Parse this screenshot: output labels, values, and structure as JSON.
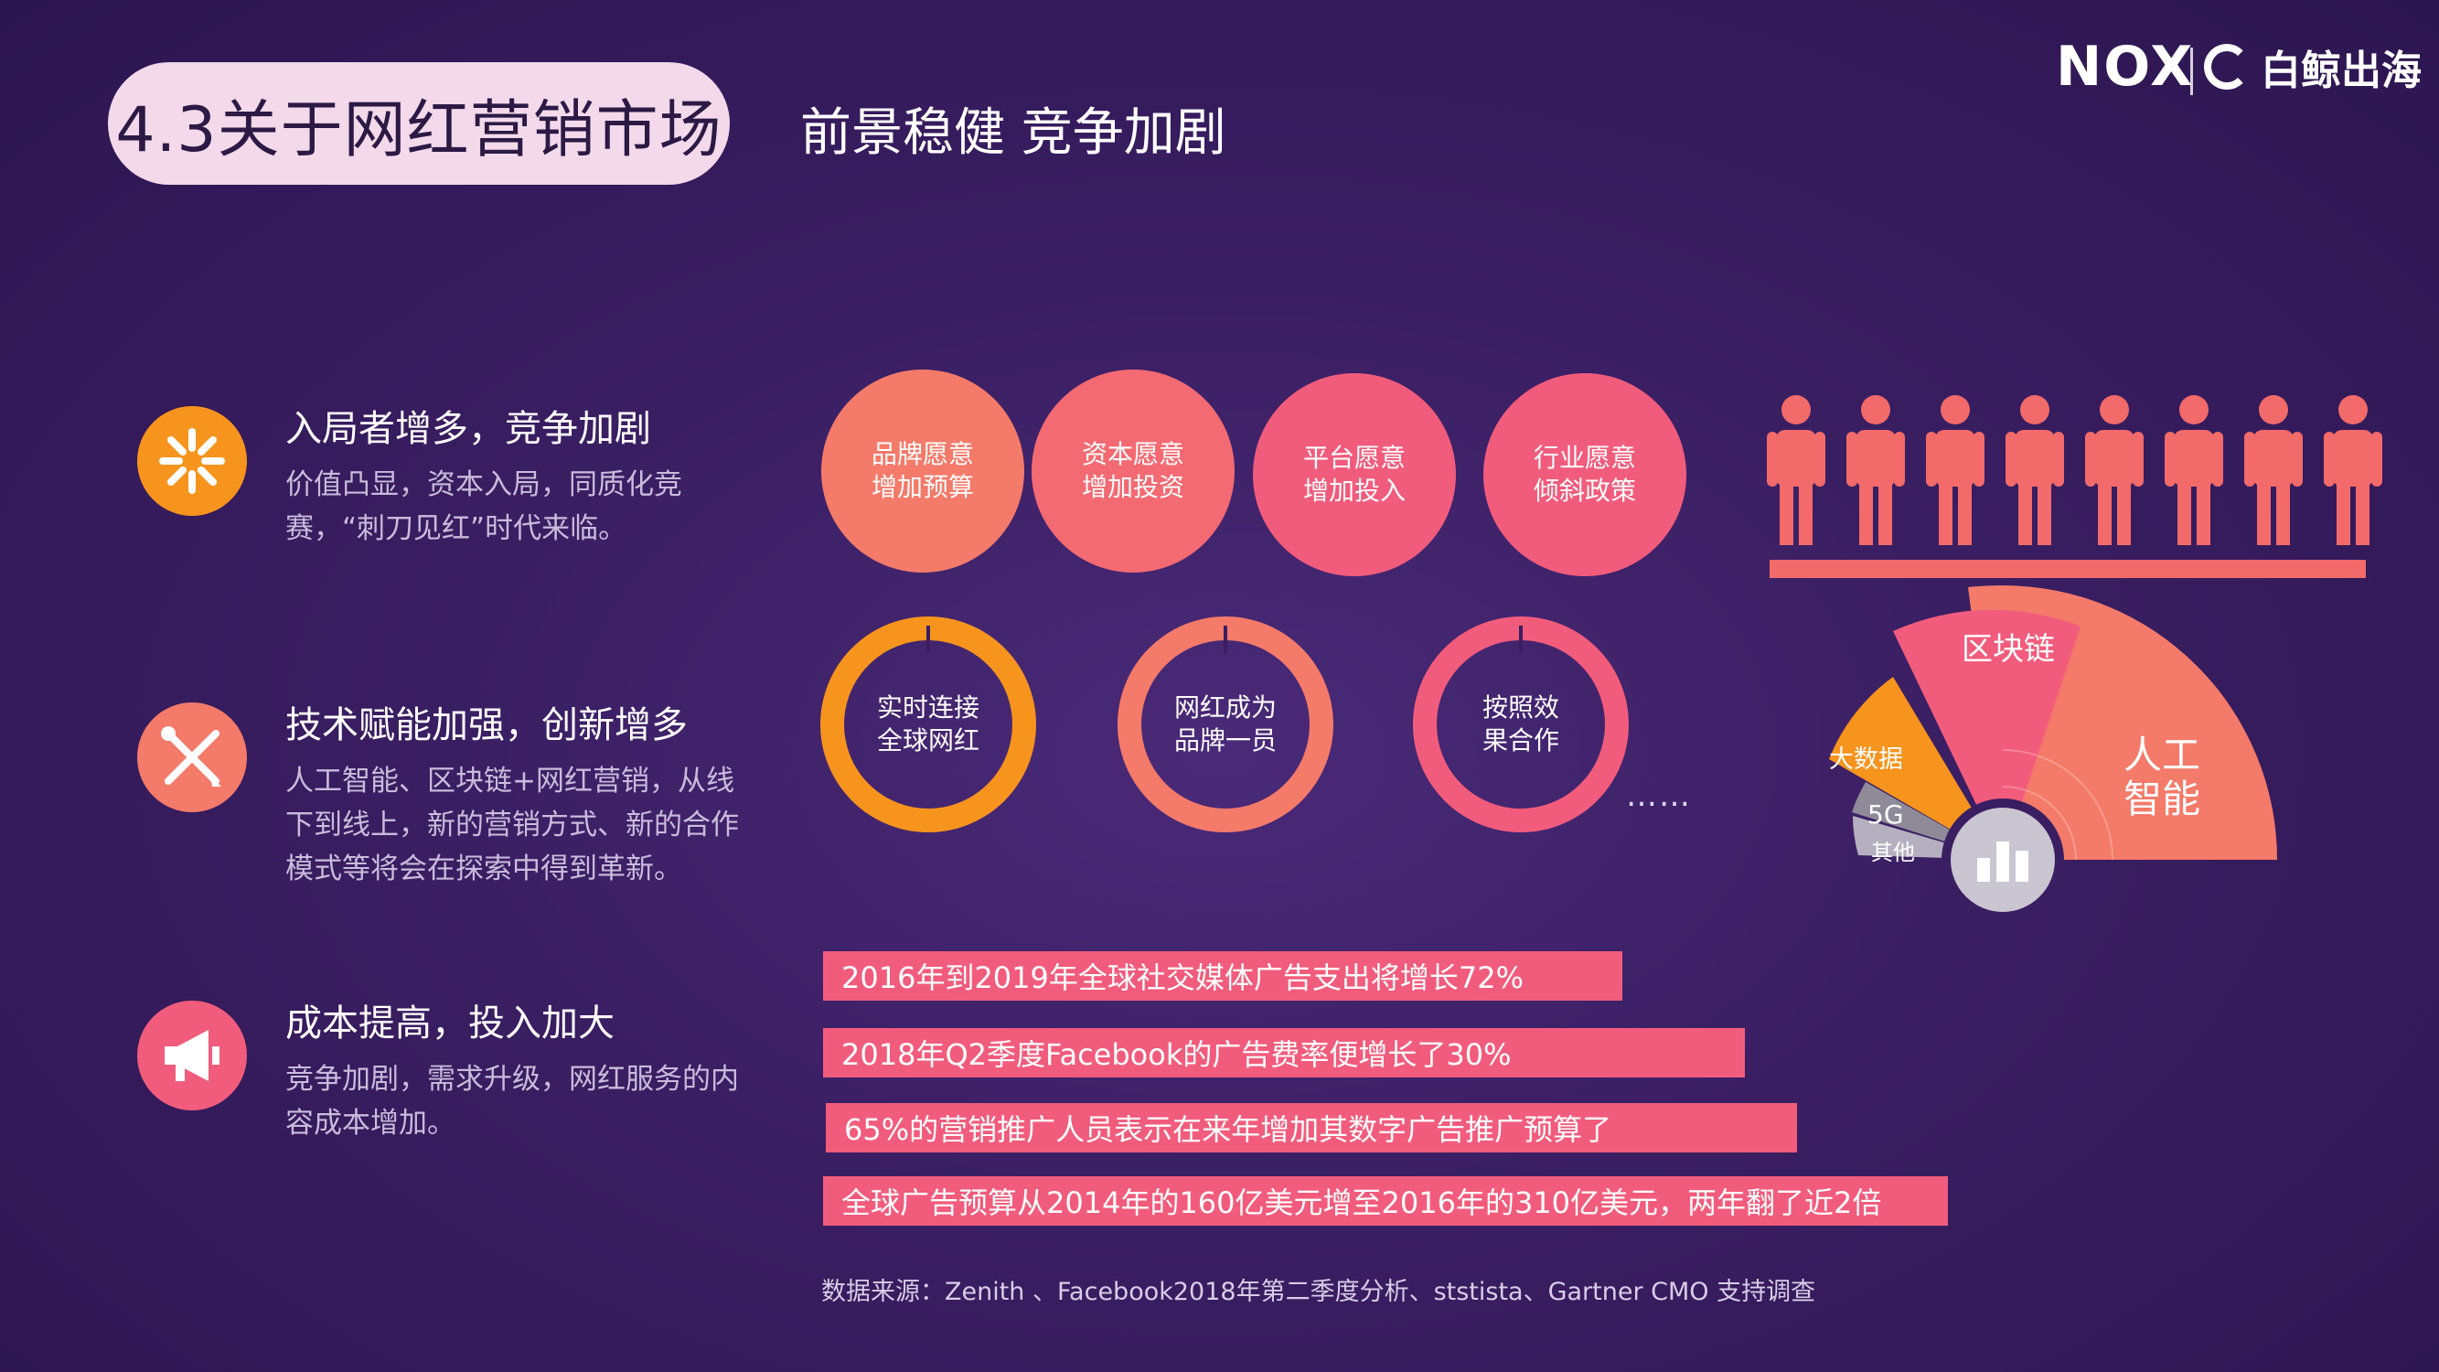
{
  "header": {
    "title": "4.3关于网红营销市场",
    "subtitle": "前景稳健 竞争加剧",
    "logo_nox": "NOX",
    "logo_brand": "白鲸出海"
  },
  "features": [
    {
      "title": "入局者增多，竞争加剧",
      "desc": "价值凸显，资本入局，同质化竞赛，“刺刀见红”时代来临。",
      "icon": "sunburst-icon",
      "color": "#f7941d"
    },
    {
      "title": "技术赋能加强，创新增多",
      "desc": "人工智能、区块链+网红营销，从线下到线上，新的营销方式、新的合作模式等将会在探索中得到革新。",
      "icon": "tools-icon",
      "color": "#f47a6a"
    },
    {
      "title": "成本提高，投入加大",
      "desc": "竞争加剧，需求升级，网红服务的内容成本增加。",
      "icon": "megaphone-icon",
      "color": "#f25c7c"
    }
  ],
  "bubbles": [
    {
      "label_1": "品牌愿意",
      "label_2": "增加预算",
      "color": "#f47a6a"
    },
    {
      "label_1": "资本愿意",
      "label_2": "增加投资",
      "color": "#f46a72"
    },
    {
      "label_1": "平台愿意",
      "label_2": "增加投入",
      "color": "#f25c7c"
    },
    {
      "label_1": "行业愿意",
      "label_2": "倾斜政策",
      "color": "#f25c7c"
    }
  ],
  "rings": [
    {
      "label_1": "实时连接",
      "label_2": "全球网红",
      "color": "#f7941d"
    },
    {
      "label_1": "网红成为",
      "label_2": "品牌一员",
      "color": "#f47a6a"
    },
    {
      "label_1": "按照效",
      "label_2": "果合作",
      "color": "#f25c7c"
    }
  ],
  "ellipsis": "……",
  "fan": {
    "segments": [
      {
        "label": "其他",
        "color": "#b5b0bf"
      },
      {
        "label": "5G",
        "color": "#8f8a98"
      },
      {
        "label": "大数据",
        "color": "#f7941d"
      },
      {
        "label": "区块链",
        "color": "#f25c7c"
      },
      {
        "label_1": "人工",
        "label_2": "智能",
        "color": "#f47a6a"
      }
    ],
    "center_icon": "bar-chart-icon"
  },
  "people_count": 8,
  "stats": [
    "2016年到2019年全球社交媒体广告支出将增长72%",
    "2018年Q2季度Facebook的广告费率便增长了30%",
    "65%的营销推广人员表示在来年增加其数字广告推广预算了",
    "全球广告预算从2014年的160亿美元增至2016年的310亿美元，两年翻了近2倍"
  ],
  "source": "数据来源：Zenith 、Facebook2018年第二季度分析、ststista、Gartner CMO 支持调查",
  "colors": {
    "accent_coral": "#f25c7c",
    "accent_orange": "#f7941d",
    "title_pill": "#f3d9ea"
  }
}
